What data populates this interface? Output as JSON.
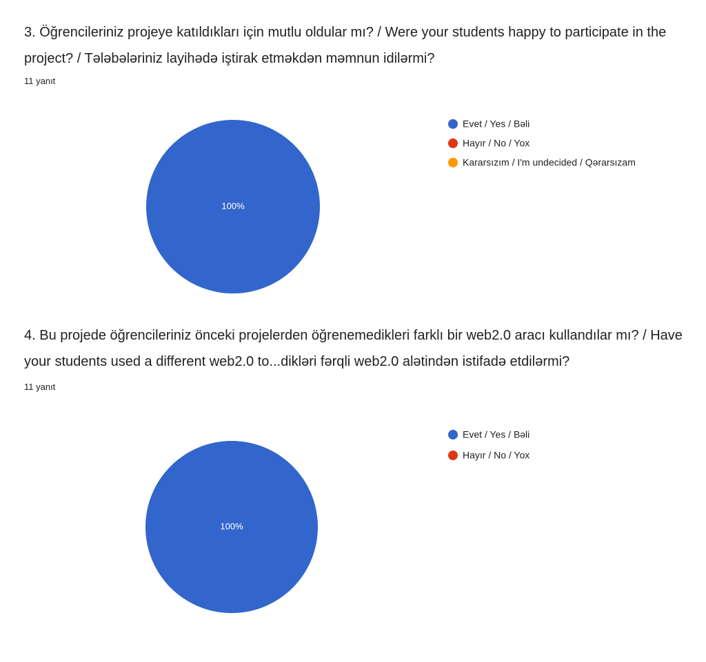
{
  "chart_data": [
    {
      "type": "pie",
      "title": "3. Öğrencileriniz projeye katıldıkları için mutlu oldular mı? / Were your students happy to participate in the project? / Tələbələriniz layihədə iştirak etməkdən məmnun idilərmi?",
      "subtitle": "11 yanıt",
      "categories": [
        "Evet / Yes / Bəli",
        "Hayır / No / Yox",
        "Kararsızım / I'm undecided / Qərarsızam"
      ],
      "colors": [
        "#3366cc",
        "#dc3912",
        "#ff9900"
      ],
      "values": [
        100,
        0,
        0
      ],
      "value_labels": [
        "100%",
        null,
        null
      ]
    },
    {
      "type": "pie",
      "title": "4. Bu projede öğrencileriniz önceki projelerden öğrenemedikleri farklı bir web2.0 aracı kullandılar mı? / Have your students used a different web2.0 to...dikləri fərqli web2.0 alətindən istifadə etdilərmi?",
      "subtitle": "11 yanıt",
      "categories": [
        "Evet / Yes / Bəli",
        "Hayır / No / Yox"
      ],
      "colors": [
        "#3366cc",
        "#dc3912"
      ],
      "values": [
        100,
        0
      ],
      "value_labels": [
        "100%",
        null
      ]
    }
  ]
}
